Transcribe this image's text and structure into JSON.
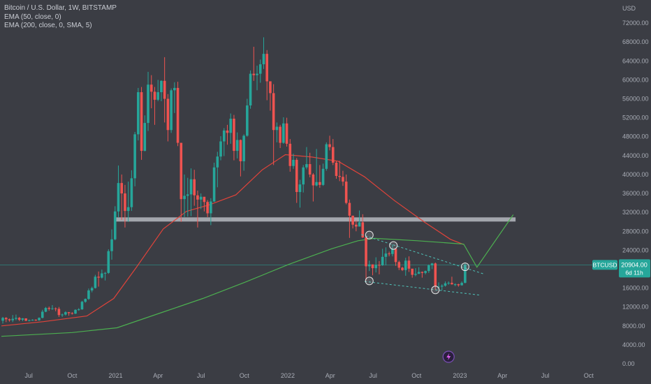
{
  "chart_data": {
    "type": "candlestick",
    "symbol_title": "Bitcoin / U.S. Dollar, 1W, BITSTAMP",
    "indicators": [
      "EMA (50, close, 0)",
      "EMA (200, close, 0, SMA, 5)"
    ],
    "ylabel": "USD",
    "ylim": [
      0,
      76000
    ],
    "y_ticks": [
      "72000.00",
      "68000.00",
      "64000.00",
      "60000.00",
      "56000.00",
      "52000.00",
      "48000.00",
      "44000.00",
      "40000.00",
      "36000.00",
      "32000.00",
      "28000.00",
      "24000.00",
      "20000.00",
      "16000.00",
      "12000.00",
      "8000.00",
      "4000.00",
      "0.00"
    ],
    "x_ticks": [
      {
        "label": "Jul",
        "date": "2020-07-01"
      },
      {
        "label": "Oct",
        "date": "2020-10-01"
      },
      {
        "label": "2021",
        "date": "2021-01-01"
      },
      {
        "label": "Apr",
        "date": "2021-04-01"
      },
      {
        "label": "Jul",
        "date": "2021-07-01"
      },
      {
        "label": "Oct",
        "date": "2021-10-01"
      },
      {
        "label": "2022",
        "date": "2022-01-01"
      },
      {
        "label": "Apr",
        "date": "2022-04-01"
      },
      {
        "label": "Jul",
        "date": "2022-07-01"
      },
      {
        "label": "Oct",
        "date": "2022-10-01"
      },
      {
        "label": "2023",
        "date": "2023-01-01"
      },
      {
        "label": "Apr",
        "date": "2023-04-01"
      },
      {
        "label": "Jul",
        "date": "2023-07-01"
      },
      {
        "label": "Oct",
        "date": "2023-10-01"
      }
    ],
    "price_tag": {
      "ticker": "BTCUSD",
      "price": "20904.00",
      "countdown": "6d 11h",
      "value": 20904
    },
    "colors": {
      "up": "#26a69a",
      "down": "#ef5350",
      "ema50": "#e0433a",
      "ema200": "#4caf50",
      "background": "#3b3d44",
      "zone": "#b6b8bf",
      "projection": "#4caf50",
      "channel": "#4fc3b9"
    },
    "candles": [
      [
        "2020-05-04",
        9100,
        9900,
        8500,
        9700
      ],
      [
        "2020-05-11",
        9700,
        9850,
        8800,
        9400
      ],
      [
        "2020-05-18",
        9400,
        9550,
        8900,
        9200
      ],
      [
        "2020-05-25",
        9200,
        10300,
        8800,
        9500
      ],
      [
        "2020-06-01",
        9500,
        10400,
        9200,
        9700
      ],
      [
        "2020-06-08",
        9700,
        9900,
        9000,
        9300
      ],
      [
        "2020-06-15",
        9300,
        9650,
        9000,
        9600
      ],
      [
        "2020-06-22",
        9600,
        9600,
        9000,
        9100
      ],
      [
        "2020-06-29",
        9100,
        9350,
        8950,
        9200
      ],
      [
        "2020-07-06",
        9200,
        9400,
        9100,
        9300
      ],
      [
        "2020-07-13",
        9300,
        9400,
        9050,
        9200
      ],
      [
        "2020-07-20",
        9200,
        9800,
        9100,
        9700
      ],
      [
        "2020-07-27",
        9700,
        11400,
        9600,
        11000
      ],
      [
        "2020-08-03",
        11000,
        12000,
        10900,
        11800
      ],
      [
        "2020-08-10",
        11800,
        12100,
        11200,
        11600
      ],
      [
        "2020-08-17",
        11600,
        12400,
        11400,
        11700
      ],
      [
        "2020-08-24",
        11700,
        11900,
        11100,
        11600
      ],
      [
        "2020-08-31",
        11600,
        12000,
        9900,
        10300
      ],
      [
        "2020-09-07",
        10300,
        10600,
        9900,
        10400
      ],
      [
        "2020-09-14",
        10400,
        11100,
        10200,
        10900
      ],
      [
        "2020-09-21",
        10900,
        10950,
        10150,
        10700
      ],
      [
        "2020-09-28",
        10700,
        10900,
        10400,
        10600
      ],
      [
        "2020-10-05",
        10600,
        11500,
        10500,
        11400
      ],
      [
        "2020-10-12",
        11400,
        11750,
        11200,
        11500
      ],
      [
        "2020-10-19",
        11500,
        13300,
        11400,
        13100
      ],
      [
        "2020-10-26",
        13100,
        13800,
        12900,
        13700
      ],
      [
        "2020-11-02",
        13700,
        15900,
        13500,
        15500
      ],
      [
        "2020-11-09",
        15500,
        16300,
        15100,
        16000
      ],
      [
        "2020-11-16",
        16000,
        18800,
        15900,
        18400
      ],
      [
        "2020-11-23",
        18400,
        19500,
        16300,
        18200
      ],
      [
        "2020-11-30",
        18200,
        19900,
        18000,
        19100
      ],
      [
        "2020-12-07",
        19100,
        19400,
        17600,
        19200
      ],
      [
        "2020-12-14",
        19200,
        24200,
        19000,
        23800
      ],
      [
        "2020-12-21",
        23800,
        28400,
        22000,
        26300
      ],
      [
        "2020-12-28",
        26300,
        33300,
        26100,
        32200
      ],
      [
        "2021-01-04",
        32200,
        41900,
        31000,
        38200
      ],
      [
        "2021-01-11",
        38200,
        40000,
        30400,
        36000
      ],
      [
        "2021-01-18",
        36000,
        37800,
        28800,
        32300
      ],
      [
        "2021-01-25",
        32300,
        38500,
        30000,
        33100
      ],
      [
        "2021-02-01",
        33100,
        40900,
        32300,
        39200
      ],
      [
        "2021-02-08",
        39200,
        49000,
        37500,
        48500
      ],
      [
        "2021-02-15",
        48500,
        58300,
        47200,
        57400
      ],
      [
        "2021-02-22",
        57400,
        58500,
        43100,
        45000
      ],
      [
        "2021-03-01",
        45000,
        52500,
        44900,
        50900
      ],
      [
        "2021-03-08",
        50900,
        61700,
        49200,
        59000
      ],
      [
        "2021-03-15",
        59000,
        61000,
        54000,
        57500
      ],
      [
        "2021-03-22",
        57500,
        58500,
        50500,
        55800
      ],
      [
        "2021-03-29",
        55800,
        60000,
        55500,
        57400
      ],
      [
        "2021-04-05",
        57400,
        59900,
        55500,
        59800
      ],
      [
        "2021-04-12",
        59800,
        64800,
        51000,
        56000
      ],
      [
        "2021-04-19",
        56000,
        57000,
        47000,
        49400
      ],
      [
        "2021-04-26",
        49400,
        58200,
        48800,
        57800
      ],
      [
        "2021-05-03",
        57800,
        59500,
        53000,
        58300
      ],
      [
        "2021-05-10",
        58300,
        59600,
        46000,
        46700
      ],
      [
        "2021-05-17",
        46700,
        46700,
        30000,
        34800
      ],
      [
        "2021-05-24",
        34800,
        40000,
        31000,
        35500
      ],
      [
        "2021-05-31",
        35500,
        39300,
        31100,
        35800
      ],
      [
        "2021-06-07",
        35800,
        41300,
        31200,
        39000
      ],
      [
        "2021-06-14",
        39000,
        41000,
        33400,
        35600
      ],
      [
        "2021-06-21",
        35600,
        36600,
        28800,
        34700
      ],
      [
        "2021-06-28",
        34700,
        36000,
        32700,
        35300
      ],
      [
        "2021-07-05",
        35300,
        35200,
        32200,
        34200
      ],
      [
        "2021-07-12",
        34200,
        34600,
        31000,
        31800
      ],
      [
        "2021-07-19",
        31800,
        35000,
        29300,
        34300
      ],
      [
        "2021-07-26",
        34300,
        42500,
        34200,
        41500
      ],
      [
        "2021-08-02",
        41500,
        44800,
        37300,
        43800
      ],
      [
        "2021-08-09",
        43800,
        48100,
        43000,
        47000
      ],
      [
        "2021-08-16",
        47000,
        49800,
        43900,
        49300
      ],
      [
        "2021-08-23",
        49300,
        50500,
        46300,
        48800
      ],
      [
        "2021-08-30",
        48800,
        52900,
        46500,
        51800
      ],
      [
        "2021-09-06",
        51800,
        52600,
        43000,
        45000
      ],
      [
        "2021-09-13",
        45000,
        48900,
        43400,
        47300
      ],
      [
        "2021-09-20",
        47300,
        47400,
        39600,
        42800
      ],
      [
        "2021-09-27",
        42800,
        48500,
        40800,
        48200
      ],
      [
        "2021-10-04",
        48200,
        56000,
        48000,
        54600
      ],
      [
        "2021-10-11",
        54600,
        62000,
        53900,
        61300
      ],
      [
        "2021-10-18",
        61300,
        67000,
        59800,
        61000
      ],
      [
        "2021-10-25",
        61000,
        63000,
        57800,
        61300
      ],
      [
        "2021-11-01",
        61300,
        64300,
        59400,
        63300
      ],
      [
        "2021-11-08",
        63300,
        69000,
        62300,
        65500
      ],
      [
        "2021-11-15",
        65500,
        66300,
        55700,
        59700
      ],
      [
        "2021-11-22",
        59700,
        59700,
        53500,
        57200
      ],
      [
        "2021-11-29",
        57200,
        59100,
        42000,
        49400
      ],
      [
        "2021-12-06",
        49400,
        51000,
        46800,
        50100
      ],
      [
        "2021-12-13",
        50100,
        50500,
        45600,
        46700
      ],
      [
        "2021-12-20",
        46700,
        52100,
        46500,
        50800
      ],
      [
        "2021-12-27",
        50800,
        52000,
        45900,
        46500
      ],
      [
        "2022-01-03",
        46500,
        47500,
        40600,
        41800
      ],
      [
        "2022-01-10",
        41800,
        44400,
        41200,
        43100
      ],
      [
        "2022-01-17",
        43100,
        43500,
        34000,
        36300
      ],
      [
        "2022-01-24",
        36300,
        38900,
        33000,
        37900
      ],
      [
        "2022-01-31",
        37900,
        42000,
        36200,
        41500
      ],
      [
        "2022-02-07",
        41500,
        45800,
        41100,
        42200
      ],
      [
        "2022-02-14",
        42200,
        44600,
        39400,
        40000
      ],
      [
        "2022-02-21",
        40000,
        40300,
        34300,
        37700
      ],
      [
        "2022-02-28",
        37700,
        45400,
        37500,
        38400
      ],
      [
        "2022-03-07",
        38400,
        42000,
        37200,
        37800
      ],
      [
        "2022-03-14",
        37800,
        42300,
        37600,
        41200
      ],
      [
        "2022-03-21",
        41200,
        46800,
        40800,
        46400
      ],
      [
        "2022-03-28",
        46400,
        48200,
        45100,
        45800
      ],
      [
        "2022-04-04",
        45800,
        47500,
        42000,
        42500
      ],
      [
        "2022-04-11",
        42500,
        42800,
        39100,
        39700
      ],
      [
        "2022-04-18",
        39700,
        42900,
        38600,
        39500
      ],
      [
        "2022-04-25",
        39500,
        40800,
        37600,
        38500
      ],
      [
        "2022-05-02",
        38500,
        40000,
        33700,
        34000
      ],
      [
        "2022-05-09",
        34000,
        34700,
        26600,
        31300
      ],
      [
        "2022-05-16",
        31300,
        31300,
        28600,
        29400
      ],
      [
        "2022-05-23",
        29400,
        30300,
        28000,
        29000
      ],
      [
        "2022-05-30",
        29000,
        32400,
        29000,
        29900
      ],
      [
        "2022-06-06",
        29900,
        31600,
        26600,
        26700
      ],
      [
        "2022-06-13",
        26700,
        26800,
        17600,
        20600
      ],
      [
        "2022-06-20",
        20600,
        21800,
        19600,
        21000
      ],
      [
        "2022-06-27",
        21000,
        21000,
        18700,
        20200
      ],
      [
        "2022-07-04",
        20200,
        22500,
        19300,
        20900
      ],
      [
        "2022-07-11",
        20900,
        21700,
        18900,
        20800
      ],
      [
        "2022-07-18",
        20800,
        24300,
        20700,
        22600
      ],
      [
        "2022-07-25",
        22600,
        24600,
        20800,
        23300
      ],
      [
        "2022-08-01",
        23300,
        23700,
        22700,
        23200
      ],
      [
        "2022-08-08",
        23200,
        25200,
        22700,
        24300
      ],
      [
        "2022-08-15",
        24300,
        24400,
        20700,
        21500
      ],
      [
        "2022-08-22",
        21500,
        21800,
        19800,
        20300
      ],
      [
        "2022-08-29",
        20300,
        20500,
        19600,
        19800
      ],
      [
        "2022-09-05",
        19800,
        22400,
        18600,
        21800
      ],
      [
        "2022-09-12",
        21800,
        22700,
        19400,
        20100
      ],
      [
        "2022-09-19",
        20100,
        20000,
        18200,
        18800
      ],
      [
        "2022-09-26",
        18800,
        20200,
        18500,
        19000
      ],
      [
        "2022-10-03",
        19000,
        20400,
        19000,
        19400
      ],
      [
        "2022-10-10",
        19400,
        19500,
        18200,
        19200
      ],
      [
        "2022-10-17",
        19200,
        19700,
        18900,
        19600
      ],
      [
        "2022-10-24",
        19600,
        21000,
        19200,
        20800
      ],
      [
        "2022-10-31",
        20800,
        21300,
        20000,
        21200
      ],
      [
        "2022-11-07",
        21200,
        21400,
        15600,
        16300
      ],
      [
        "2022-11-14",
        16300,
        17200,
        15800,
        16300
      ],
      [
        "2022-11-21",
        16300,
        16800,
        15500,
        16500
      ],
      [
        "2022-11-28",
        16500,
        17400,
        16300,
        17000
      ],
      [
        "2022-12-05",
        17000,
        17400,
        16700,
        17100
      ],
      [
        "2022-12-12",
        17100,
        18400,
        16700,
        16800
      ],
      [
        "2022-12-19",
        16800,
        17000,
        16400,
        16800
      ],
      [
        "2022-12-26",
        16800,
        16900,
        16300,
        16600
      ],
      [
        "2023-01-02",
        16600,
        17400,
        16500,
        17100
      ],
      [
        "2023-01-09",
        17100,
        21300,
        17000,
        20904
      ]
    ],
    "ema50": [
      [
        "2020-05-04",
        8000
      ],
      [
        "2020-08-01",
        8900
      ],
      [
        "2020-11-01",
        10100
      ],
      [
        "2020-12-28",
        13800
      ],
      [
        "2021-02-15",
        20500
      ],
      [
        "2021-04-12",
        28500
      ],
      [
        "2021-05-31",
        32200
      ],
      [
        "2021-07-19",
        33600
      ],
      [
        "2021-09-13",
        35700
      ],
      [
        "2021-11-08",
        41000
      ],
      [
        "2021-12-27",
        44200
      ],
      [
        "2022-02-21",
        43700
      ],
      [
        "2022-04-18",
        42800
      ],
      [
        "2022-06-13",
        39500
      ],
      [
        "2022-08-15",
        34500
      ],
      [
        "2022-10-17",
        30000
      ],
      [
        "2022-12-12",
        26300
      ],
      [
        "2023-01-09",
        25200
      ]
    ],
    "ema200": [
      [
        "2020-05-04",
        5800
      ],
      [
        "2020-10-01",
        6600
      ],
      [
        "2021-01-04",
        7600
      ],
      [
        "2021-04-05",
        10700
      ],
      [
        "2021-07-05",
        13800
      ],
      [
        "2021-10-04",
        17300
      ],
      [
        "2022-01-03",
        21000
      ],
      [
        "2022-04-04",
        24300
      ],
      [
        "2022-05-30",
        26000
      ],
      [
        "2022-07-04",
        26500
      ],
      [
        "2022-10-03",
        26000
      ],
      [
        "2023-01-09",
        25300
      ]
    ],
    "horizontal_zone": {
      "value": 30500,
      "from": "2021-01-01",
      "to": "2023-04-29"
    },
    "channel_upper": [
      [
        "2022-06-06",
        27300
      ],
      [
        "2023-02-20",
        19000
      ]
    ],
    "channel_lower": [
      [
        "2022-06-13",
        17400
      ],
      [
        "2023-02-13",
        14500
      ]
    ],
    "projection": [
      [
        "2023-01-09",
        25300
      ],
      [
        "2023-02-06",
        20400
      ],
      [
        "2023-04-24",
        31500
      ]
    ],
    "highlight_circles": [
      [
        "2022-06-20",
        27200
      ],
      [
        "2022-06-20",
        17500
      ],
      [
        "2022-08-10",
        25000
      ],
      [
        "2022-11-07",
        15600
      ],
      [
        "2023-01-09",
        20500
      ]
    ],
    "tv_logo_date": "2022-12-05"
  }
}
